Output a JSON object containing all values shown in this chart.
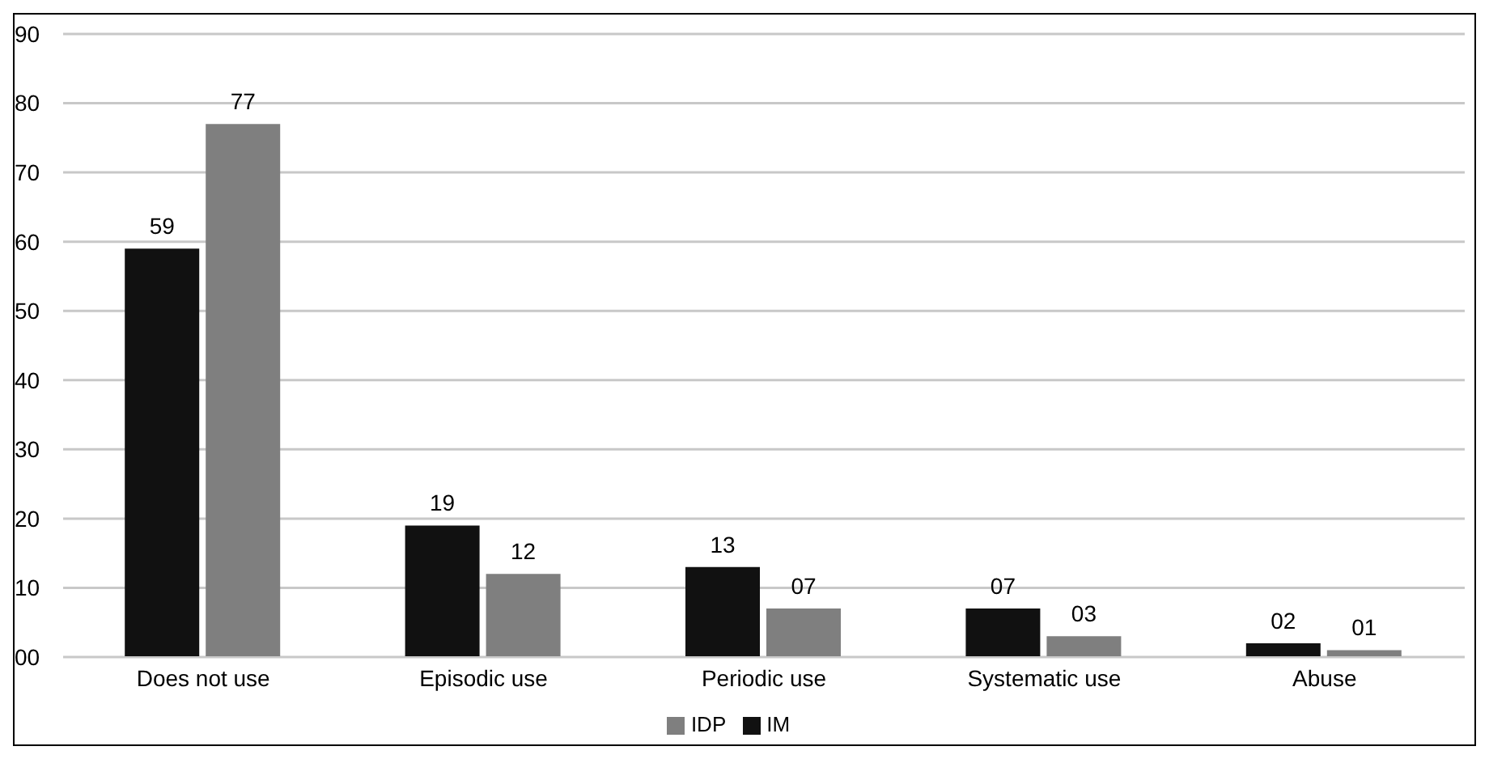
{
  "chart_data": {
    "type": "bar",
    "categories": [
      "Does not use",
      "Episodic use",
      "Periodic use",
      "Systematic use",
      "Abuse"
    ],
    "series": [
      {
        "name": "IM",
        "color": "#111111",
        "values": [
          59,
          19,
          13,
          7,
          2
        ],
        "value_labels": [
          "59",
          "19",
          "13",
          "07",
          "02"
        ]
      },
      {
        "name": "IDP",
        "color": "#7f7f7f",
        "values": [
          77,
          12,
          7,
          3,
          1
        ],
        "value_labels": [
          "77",
          "12",
          "07",
          "03",
          "01"
        ]
      }
    ],
    "ylim": [
      0,
      90
    ],
    "yticks": [
      {
        "value": 0,
        "label": "00"
      },
      10,
      20,
      30,
      40,
      50,
      60,
      70,
      80,
      90
    ],
    "grid": "y",
    "legend": "bottom"
  }
}
